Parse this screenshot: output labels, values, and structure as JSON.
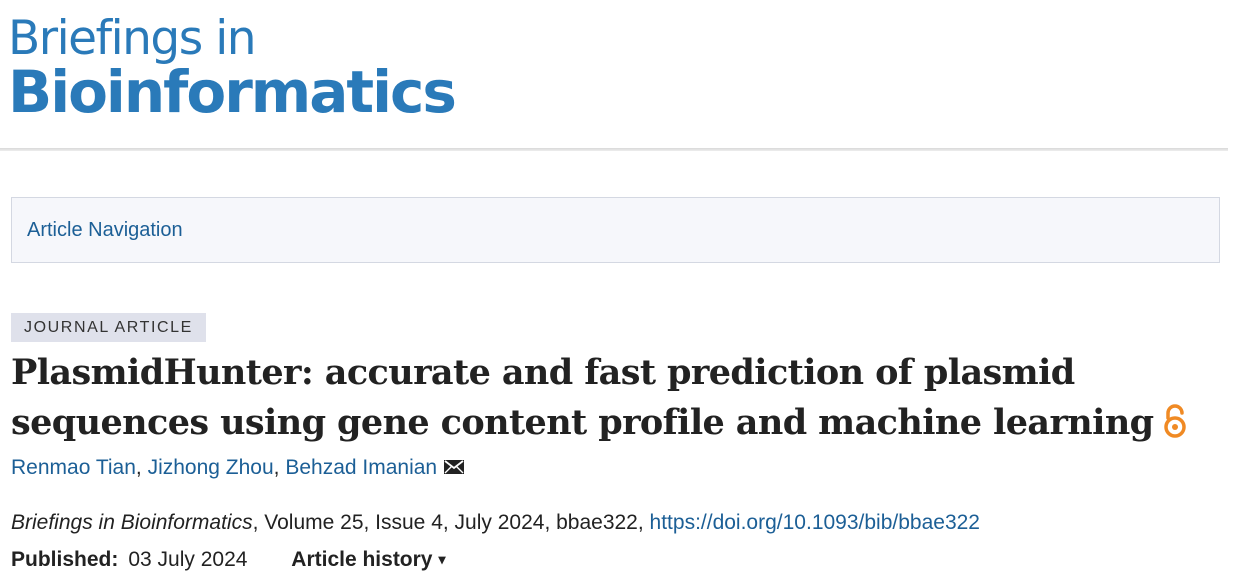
{
  "logo": {
    "line1": "Briefings in",
    "line2": "Bioinformatics",
    "brand_color": "#2a7ab9"
  },
  "article_navigation": {
    "label": "Article Navigation"
  },
  "article": {
    "type_badge": "JOURNAL ARTICLE",
    "title": "PlasmidHunter: accurate and fast prediction of plasmid sequences using gene content profile and machine learning",
    "open_access_icon": "open-access-lock-icon",
    "authors": [
      "Renmao Tian",
      "Jizhong Zhou",
      "Behzad Imanian"
    ],
    "author_separator": ", ",
    "corresponding_icon": "envelope-icon",
    "citation": {
      "journal": "Briefings in Bioinformatics",
      "details": ", Volume 25, Issue 4, July 2024, bbae322, ",
      "doi": "https://doi.org/10.1093/bib/bbae322"
    },
    "published_label": "Published:",
    "published_date": "03 July 2024",
    "history_label": "Article history",
    "history_caret": "▾"
  },
  "colors": {
    "link": "#1c5f96",
    "open_access": "#f08a24",
    "badge_bg": "#dfe1eb"
  }
}
